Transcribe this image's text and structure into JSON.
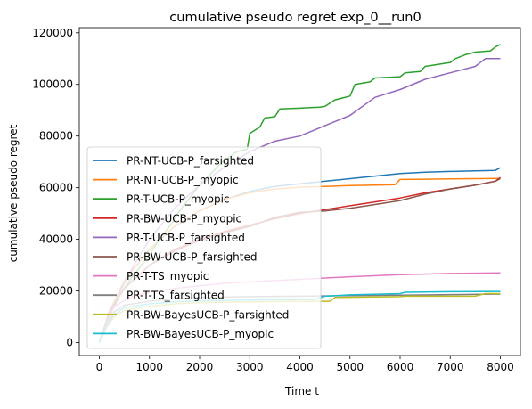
{
  "chart_data": {
    "type": "line",
    "title": "cumulative pseudo regret exp_0__run0",
    "xlabel": "Time t",
    "ylabel": "cumulative pseudo regret",
    "xlim": [
      -400,
      8400
    ],
    "ylim": [
      -5000,
      122000
    ],
    "xticks": [
      0,
      1000,
      2000,
      3000,
      4000,
      5000,
      6000,
      7000,
      8000
    ],
    "yticks": [
      0,
      20000,
      40000,
      60000,
      80000,
      100000,
      120000
    ],
    "grid": false,
    "legend_position": "lower-left",
    "series": [
      {
        "name": "PR-NT-UCB-P_farsighted",
        "color": "#1f77b4",
        "x": [
          0,
          250,
          500,
          1000,
          1500,
          2000,
          2500,
          3000,
          3500,
          4000,
          4500,
          5000,
          5500,
          6000,
          6500,
          7000,
          7500,
          7900,
          8000
        ],
        "y": [
          0,
          14000,
          24000,
          36000,
          45000,
          51000,
          55500,
          58500,
          60500,
          61500,
          62500,
          63500,
          64500,
          65500,
          66000,
          66300,
          66500,
          66700,
          67800
        ]
      },
      {
        "name": "PR-NT-UCB-P_myopic",
        "color": "#ff7f0e",
        "x": [
          0,
          250,
          500,
          1000,
          1500,
          2000,
          2500,
          3000,
          3500,
          4000,
          4500,
          5000,
          5500,
          5900,
          6000,
          6500,
          7000,
          7500,
          8000
        ],
        "y": [
          0,
          14000,
          24000,
          36000,
          45000,
          51000,
          55500,
          58000,
          59500,
          60200,
          60500,
          60800,
          61000,
          61200,
          63200,
          63300,
          63400,
          63500,
          63600
        ]
      },
      {
        "name": "PR-T-UCB-P_myopic",
        "color": "#2ca02c",
        "x": [
          0,
          200,
          400,
          600,
          800,
          1000,
          1200,
          1400,
          1600,
          1800,
          2000,
          2200,
          2400,
          2600,
          2750,
          2950,
          3000,
          3200,
          3300,
          3500,
          3600,
          4000,
          4200,
          4400,
          4500,
          4700,
          5000,
          5100,
          5400,
          5500,
          6000,
          6100,
          6400,
          6500,
          7000,
          7100,
          7300,
          7500,
          7800,
          7900,
          8000
        ],
        "y": [
          0,
          10000,
          18000,
          24000,
          29000,
          34000,
          40000,
          45000,
          51000,
          56000,
          61000,
          65000,
          69000,
          72000,
          74000,
          75000,
          81000,
          83500,
          87000,
          87500,
          90500,
          90800,
          91000,
          91200,
          91500,
          94000,
          95500,
          100000,
          101000,
          102500,
          103000,
          104500,
          105000,
          107000,
          108500,
          110000,
          111500,
          112500,
          113000,
          114500,
          115500
        ]
      },
      {
        "name": "PR-BW-UCB-P_myopic",
        "color": "#d62728",
        "x": [
          0,
          200,
          500,
          1000,
          1500,
          2000,
          2500,
          3000,
          3500,
          4000,
          4500,
          5000,
          5500,
          6000,
          6500,
          7000,
          7500,
          7900,
          8000
        ],
        "y": [
          0,
          12000,
          21000,
          30000,
          36000,
          40000,
          43000,
          45500,
          48000,
          50000,
          51500,
          53000,
          54500,
          56000,
          58000,
          59500,
          61000,
          62500,
          64000
        ]
      },
      {
        "name": "PR-T-UCB-P_farsighted",
        "color": "#9467bd",
        "x": [
          0,
          300,
          600,
          1000,
          1500,
          2000,
          2500,
          3000,
          3500,
          4000,
          4500,
          5000,
          5500,
          6000,
          6500,
          7000,
          7500,
          7700,
          8000
        ],
        "y": [
          0,
          15000,
          27000,
          40000,
          52000,
          61000,
          68000,
          74000,
          78000,
          80000,
          84000,
          88000,
          95000,
          98000,
          102000,
          104500,
          107000,
          110000,
          110000
        ]
      },
      {
        "name": "PR-BW-UCB-P_farsighted",
        "color": "#8c564b",
        "x": [
          0,
          200,
          500,
          1000,
          1500,
          2000,
          2500,
          3000,
          3500,
          4000,
          4500,
          5000,
          5500,
          6000,
          6500,
          7000,
          7500,
          7900,
          8000
        ],
        "y": [
          0,
          12000,
          21000,
          30000,
          35500,
          39500,
          42500,
          45000,
          48500,
          50500,
          51000,
          52000,
          53500,
          55000,
          57500,
          59500,
          61000,
          62500,
          63500
        ]
      },
      {
        "name": "PR-T-TS_myopic",
        "color": "#e377c2",
        "x": [
          0,
          150,
          300,
          600,
          1000,
          1500,
          2000,
          2500,
          3000,
          4000,
          5000,
          6000,
          7000,
          8000
        ],
        "y": [
          0,
          8000,
          14000,
          17500,
          19500,
          21000,
          22000,
          23000,
          23500,
          24500,
          25500,
          26300,
          26800,
          27000
        ]
      },
      {
        "name": "PR-T-TS_farsighted",
        "color": "#7f7f7f",
        "x": [
          0,
          150,
          300,
          500,
          1000,
          1500,
          2000,
          3000,
          4000,
          5000,
          6000,
          7000,
          8000
        ],
        "y": [
          0,
          7000,
          12000,
          14500,
          16000,
          17000,
          17500,
          17800,
          18000,
          18200,
          18400,
          18600,
          18800
        ]
      },
      {
        "name": "PR-BW-BayesUCB-P_farsighted",
        "color": "#bcbd22",
        "x": [
          0,
          150,
          300,
          500,
          1000,
          1500,
          2000,
          3000,
          4000,
          4600,
          4700,
          6000,
          6100,
          7500,
          7700,
          8000
        ],
        "y": [
          0,
          6000,
          10000,
          12500,
          14000,
          15000,
          15500,
          15800,
          16000,
          16000,
          17500,
          17800,
          18000,
          18000,
          19000,
          19000
        ]
      },
      {
        "name": "PR-BW-BayesUCB-P_myopic",
        "color": "#17becf",
        "x": [
          0,
          150,
          300,
          500,
          1000,
          1500,
          2000,
          3000,
          4000,
          4300,
          4500,
          5000,
          6000,
          6100,
          7000,
          8000
        ],
        "y": [
          0,
          6500,
          11000,
          13500,
          15000,
          15800,
          16200,
          16500,
          16700,
          16700,
          18000,
          18500,
          19000,
          19500,
          19700,
          19800
        ]
      }
    ]
  }
}
